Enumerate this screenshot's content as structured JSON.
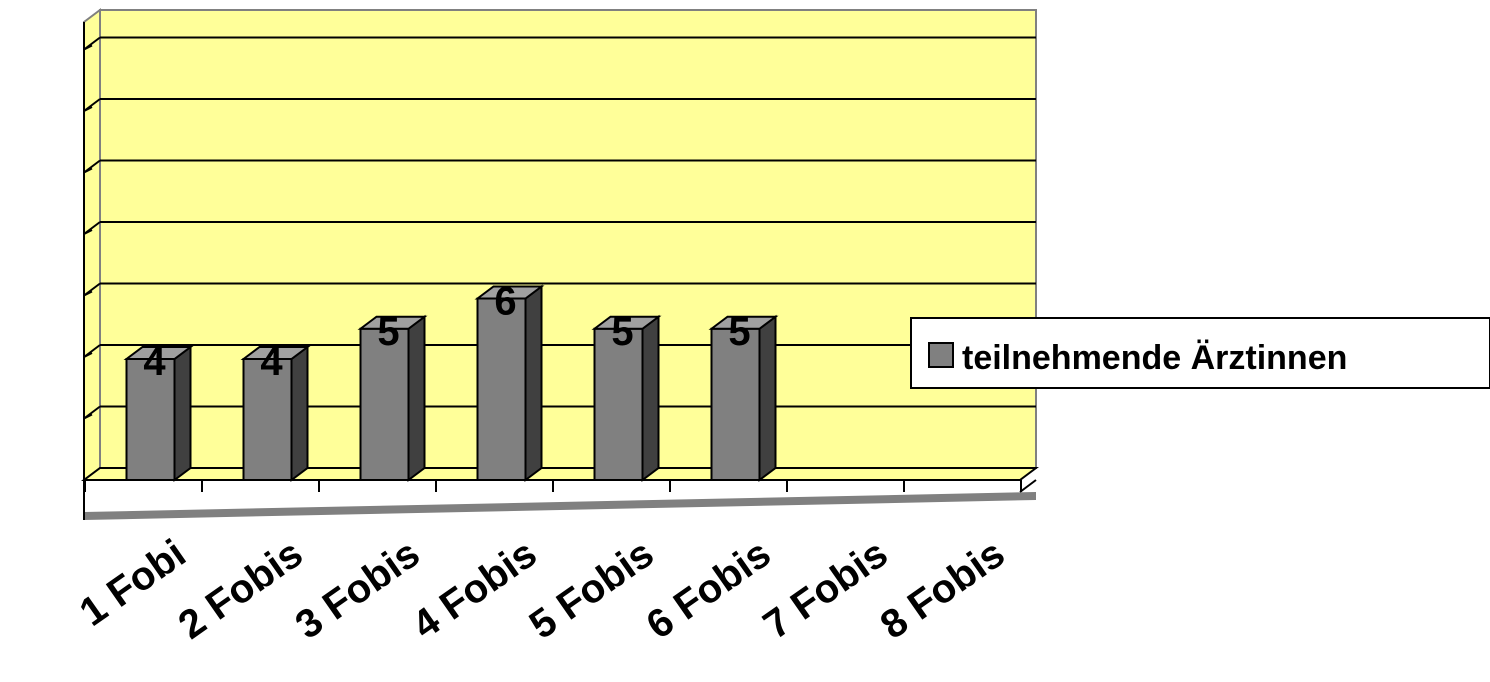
{
  "chart_data": {
    "type": "bar",
    "categories": [
      "1 Fobi",
      "2 Fobis",
      "3 Fobis",
      "4 Fobis",
      "5 Fobis",
      "6 Fobis",
      "7 Fobis",
      "8 Fobis"
    ],
    "series": [
      {
        "name": "teilnehmende Ärztinnen",
        "values": [
          4,
          4,
          5,
          6,
          5,
          5,
          null,
          null
        ],
        "color": "#808080"
      }
    ],
    "ylim": [
      0,
      14
    ],
    "grid": true,
    "legend_position": "right",
    "colors": {
      "plot_background": "#ffff99",
      "bar_front": "#808080",
      "bar_side": "#404040",
      "bar_top": "#a0a0a0",
      "floor": "#808080"
    }
  }
}
